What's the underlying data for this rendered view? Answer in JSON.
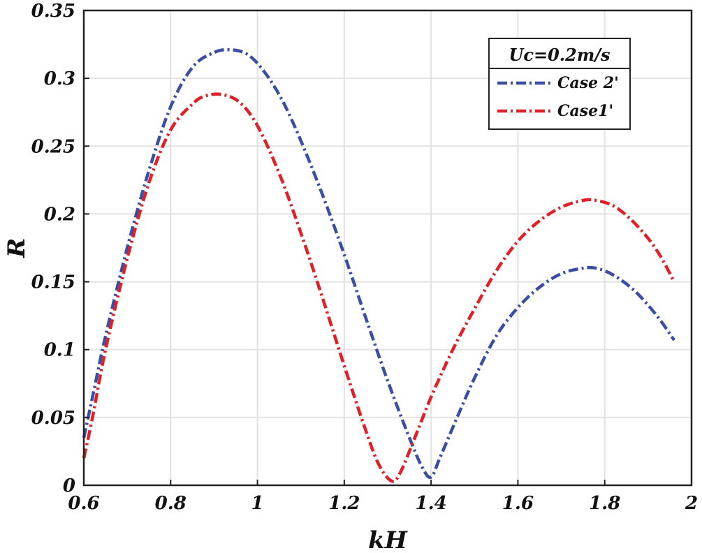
{
  "chart_data": {
    "type": "line",
    "xlabel": "kH",
    "ylabel": "R",
    "xlim": [
      0.6,
      2
    ],
    "ylim": [
      0,
      0.35
    ],
    "xticks": [
      0.6,
      0.8,
      1,
      1.2,
      1.4,
      1.6,
      1.8,
      2
    ],
    "xtick_labels": [
      "0.6",
      "0.8",
      "1",
      "1.2",
      "1.4",
      "1.6",
      "1.8",
      "2"
    ],
    "yticks": [
      0,
      0.05,
      0.1,
      0.15,
      0.2,
      0.25,
      0.3,
      0.35
    ],
    "ytick_labels": [
      "0",
      "0.05",
      "0.1",
      "0.15",
      "0.2",
      "0.25",
      "0.3",
      "0.35"
    ],
    "grid": true,
    "legend": {
      "title": "Uc=0.2m/s",
      "placement": "top-right"
    },
    "series": [
      {
        "name": "Case 2'",
        "color": "#3a4fa3",
        "x": [
          0.6,
          0.62,
          0.65,
          0.7,
          0.75,
          0.8,
          0.85,
          0.9,
          0.94,
          0.98,
          1.02,
          1.06,
          1.1,
          1.15,
          1.2,
          1.25,
          1.3,
          1.35,
          1.38,
          1.4,
          1.42,
          1.46,
          1.5,
          1.55,
          1.6,
          1.65,
          1.7,
          1.75,
          1.78,
          1.82,
          1.87,
          1.92,
          1.96
        ],
        "y": [
          0.035,
          0.065,
          0.11,
          0.175,
          0.232,
          0.279,
          0.308,
          0.319,
          0.321,
          0.317,
          0.303,
          0.282,
          0.254,
          0.214,
          0.17,
          0.123,
          0.077,
          0.035,
          0.013,
          0.006,
          0.02,
          0.05,
          0.079,
          0.11,
          0.131,
          0.146,
          0.156,
          0.16,
          0.16,
          0.155,
          0.143,
          0.125,
          0.107
        ]
      },
      {
        "name": "Case1'",
        "color": "#e01f26",
        "x": [
          0.6,
          0.62,
          0.65,
          0.7,
          0.75,
          0.8,
          0.85,
          0.88,
          0.92,
          0.96,
          1.0,
          1.05,
          1.1,
          1.15,
          1.2,
          1.25,
          1.28,
          1.31,
          1.33,
          1.36,
          1.4,
          1.45,
          1.5,
          1.55,
          1.6,
          1.65,
          1.7,
          1.75,
          1.78,
          1.82,
          1.86,
          1.9,
          1.93,
          1.96
        ],
        "y": [
          0.02,
          0.05,
          0.1,
          0.167,
          0.223,
          0.262,
          0.281,
          0.287,
          0.288,
          0.282,
          0.265,
          0.23,
          0.186,
          0.138,
          0.088,
          0.04,
          0.015,
          0.003,
          0.01,
          0.033,
          0.065,
          0.1,
          0.13,
          0.158,
          0.18,
          0.195,
          0.205,
          0.21,
          0.21,
          0.206,
          0.196,
          0.182,
          0.168,
          0.15
        ]
      }
    ]
  }
}
